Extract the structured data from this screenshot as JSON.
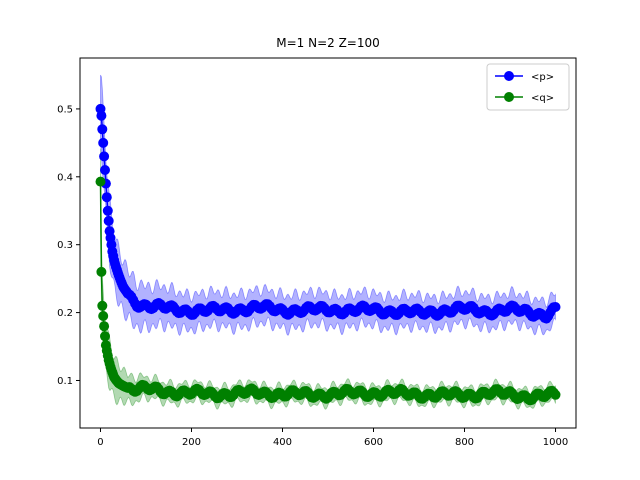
{
  "chart_data": {
    "type": "line",
    "title": "M=1 N=2 Z=100",
    "xlabel": "",
    "ylabel": "",
    "xlim": [
      -45,
      1045
    ],
    "ylim": [
      0.03,
      0.575
    ],
    "xticks": [
      0,
      200,
      400,
      600,
      800,
      1000
    ],
    "xtick_labels": [
      "0",
      "200",
      "400",
      "600",
      "800",
      "1000"
    ],
    "yticks": [
      0.1,
      0.2,
      0.3,
      0.4,
      0.5
    ],
    "ytick_labels": [
      "0.1",
      "0.2",
      "0.3",
      "0.4",
      "0.5"
    ],
    "grid": false,
    "legend_position": "top-right",
    "series": [
      {
        "name": "<p>",
        "color": "#0000ff",
        "marker": "circle",
        "band": "shaded spread around mean",
        "points": [
          [
            0,
            0.5
          ],
          [
            2,
            0.49
          ],
          [
            4,
            0.47
          ],
          [
            6,
            0.45
          ],
          [
            8,
            0.43
          ],
          [
            10,
            0.41
          ],
          [
            12,
            0.39
          ],
          [
            14,
            0.37
          ],
          [
            16,
            0.35
          ],
          [
            18,
            0.335
          ],
          [
            20,
            0.32
          ],
          [
            23,
            0.305
          ],
          [
            26,
            0.29
          ],
          [
            30,
            0.277
          ],
          [
            35,
            0.265
          ],
          [
            40,
            0.255
          ],
          [
            45,
            0.246
          ],
          [
            50,
            0.238
          ],
          [
            60,
            0.228
          ],
          [
            70,
            0.22
          ],
          [
            80,
            0.215
          ],
          [
            90,
            0.212
          ],
          [
            100,
            0.21
          ],
          [
            120,
            0.208
          ],
          [
            140,
            0.207
          ],
          [
            160,
            0.205
          ],
          [
            180,
            0.204
          ],
          [
            200,
            0.203
          ],
          [
            250,
            0.203
          ],
          [
            300,
            0.205
          ],
          [
            350,
            0.207
          ],
          [
            400,
            0.204
          ],
          [
            450,
            0.203
          ],
          [
            500,
            0.205
          ],
          [
            550,
            0.203
          ],
          [
            600,
            0.204
          ],
          [
            650,
            0.202
          ],
          [
            700,
            0.199
          ],
          [
            750,
            0.203
          ],
          [
            800,
            0.205
          ],
          [
            850,
            0.202
          ],
          [
            900,
            0.204
          ],
          [
            950,
            0.2
          ],
          [
            980,
            0.197
          ],
          [
            1000,
            0.205
          ]
        ],
        "band_width": [
          [
            0,
            0.05
          ],
          [
            10,
            0.045
          ],
          [
            30,
            0.04
          ],
          [
            60,
            0.035
          ],
          [
            100,
            0.03
          ],
          [
            200,
            0.025
          ],
          [
            1000,
            0.022
          ]
        ]
      },
      {
        "name": "<q>",
        "color": "#008000",
        "marker": "circle",
        "band": "shaded spread around mean",
        "points": [
          [
            0,
            0.393
          ],
          [
            1,
            0.32
          ],
          [
            2,
            0.26
          ],
          [
            3,
            0.23
          ],
          [
            4,
            0.21
          ],
          [
            6,
            0.195
          ],
          [
            8,
            0.18
          ],
          [
            10,
            0.165
          ],
          [
            12,
            0.152
          ],
          [
            15,
            0.14
          ],
          [
            18,
            0.13
          ],
          [
            22,
            0.12
          ],
          [
            26,
            0.112
          ],
          [
            30,
            0.105
          ],
          [
            35,
            0.1
          ],
          [
            40,
            0.096
          ],
          [
            50,
            0.092
          ],
          [
            60,
            0.089
          ],
          [
            70,
            0.087
          ],
          [
            80,
            0.087
          ],
          [
            100,
            0.087
          ],
          [
            120,
            0.086
          ],
          [
            150,
            0.084
          ],
          [
            200,
            0.081
          ],
          [
            250,
            0.08
          ],
          [
            300,
            0.081
          ],
          [
            350,
            0.082
          ],
          [
            400,
            0.08
          ],
          [
            450,
            0.079
          ],
          [
            500,
            0.08
          ],
          [
            550,
            0.081
          ],
          [
            600,
            0.082
          ],
          [
            650,
            0.081
          ],
          [
            700,
            0.08
          ],
          [
            750,
            0.078
          ],
          [
            800,
            0.079
          ],
          [
            850,
            0.081
          ],
          [
            900,
            0.08
          ],
          [
            950,
            0.076
          ],
          [
            980,
            0.077
          ],
          [
            1000,
            0.079
          ]
        ],
        "band_width": [
          [
            0,
            0.04
          ],
          [
            10,
            0.035
          ],
          [
            30,
            0.03
          ],
          [
            60,
            0.02
          ],
          [
            100,
            0.015
          ],
          [
            200,
            0.013
          ],
          [
            1000,
            0.012
          ]
        ]
      }
    ]
  }
}
